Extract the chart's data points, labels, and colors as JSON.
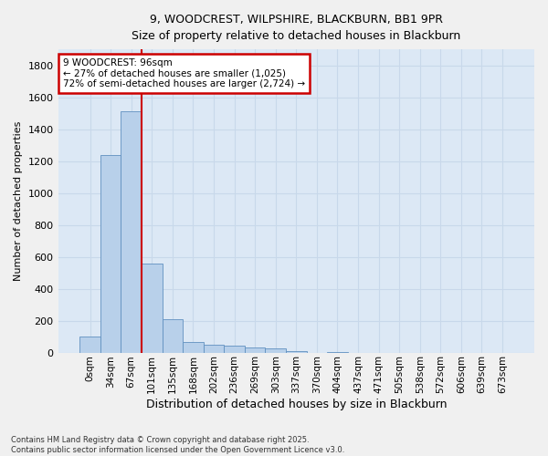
{
  "title_line1": "9, WOODCREST, WILPSHIRE, BLACKBURN, BB1 9PR",
  "title_line2": "Size of property relative to detached houses in Blackburn",
  "xlabel": "Distribution of detached houses by size in Blackburn",
  "ylabel": "Number of detached properties",
  "bar_labels": [
    "0sqm",
    "34sqm",
    "67sqm",
    "101sqm",
    "135sqm",
    "168sqm",
    "202sqm",
    "236sqm",
    "269sqm",
    "303sqm",
    "337sqm",
    "370sqm",
    "404sqm",
    "437sqm",
    "471sqm",
    "505sqm",
    "538sqm",
    "572sqm",
    "606sqm",
    "639sqm",
    "673sqm"
  ],
  "bar_values": [
    100,
    1240,
    1510,
    560,
    210,
    68,
    50,
    42,
    30,
    25,
    10,
    0,
    5,
    0,
    0,
    0,
    0,
    0,
    0,
    0,
    0
  ],
  "bar_color": "#b8d0ea",
  "bar_edge_color": "#6090c0",
  "annotation_text_line1": "9 WOODCREST: 96sqm",
  "annotation_text_line2": "← 27% of detached houses are smaller (1,025)",
  "annotation_text_line3": "72% of semi-detached houses are larger (2,724) →",
  "annotation_box_color": "#ffffff",
  "annotation_border_color": "#cc0000",
  "vline_color": "#cc0000",
  "ylim": [
    0,
    1900
  ],
  "yticks": [
    0,
    200,
    400,
    600,
    800,
    1000,
    1200,
    1400,
    1600,
    1800
  ],
  "grid_color": "#c8d8ea",
  "bg_color": "#dce8f5",
  "footer": "Contains HM Land Registry data © Crown copyright and database right 2025.\nContains public sector information licensed under the Open Government Licence v3.0."
}
